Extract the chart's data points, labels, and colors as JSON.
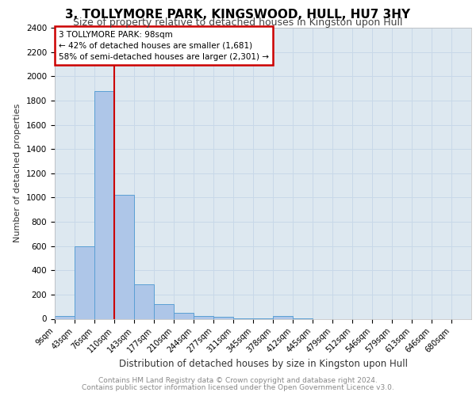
{
  "title1": "3, TOLLYMORE PARK, KINGSWOOD, HULL, HU7 3HY",
  "title2": "Size of property relative to detached houses in Kingston upon Hull",
  "xlabel": "Distribution of detached houses by size in Kingston upon Hull",
  "ylabel": "Number of detached properties",
  "footnote1": "Contains HM Land Registry data © Crown copyright and database right 2024.",
  "footnote2": "Contains public sector information licensed under the Open Government Licence v3.0.",
  "annotation_title": "3 TOLLYMORE PARK: 98sqm",
  "annotation_line1": "← 42% of detached houses are smaller (1,681)",
  "annotation_line2": "58% of semi-detached houses are larger (2,301) →",
  "bar_labels": [
    "9sqm",
    "43sqm",
    "76sqm",
    "110sqm",
    "143sqm",
    "177sqm",
    "210sqm",
    "244sqm",
    "277sqm",
    "311sqm",
    "345sqm",
    "378sqm",
    "412sqm",
    "445sqm",
    "479sqm",
    "512sqm",
    "546sqm",
    "579sqm",
    "613sqm",
    "646sqm",
    "680sqm"
  ],
  "bar_values": [
    20,
    600,
    1875,
    1025,
    285,
    120,
    50,
    25,
    15,
    2,
    2,
    20,
    2,
    0,
    0,
    0,
    0,
    0,
    0,
    0,
    0
  ],
  "bar_color": "#aec6e8",
  "bar_edge_color": "#5a9fd4",
  "grid_color": "#c8d8e8",
  "background_color": "#dde8f0",
  "red_line_x": 2.5,
  "ylim": [
    0,
    2400
  ],
  "yticks": [
    0,
    200,
    400,
    600,
    800,
    1000,
    1200,
    1400,
    1600,
    1800,
    2000,
    2200,
    2400
  ],
  "annotation_box_color": "#ffffff",
  "annotation_border_color": "#cc0000",
  "red_line_color": "#cc0000",
  "title1_fontsize": 11,
  "title2_fontsize": 9,
  "ylabel_fontsize": 8,
  "xlabel_fontsize": 8.5,
  "footnote_fontsize": 6.5,
  "tick_fontsize": 7.5,
  "xtick_fontsize": 7
}
